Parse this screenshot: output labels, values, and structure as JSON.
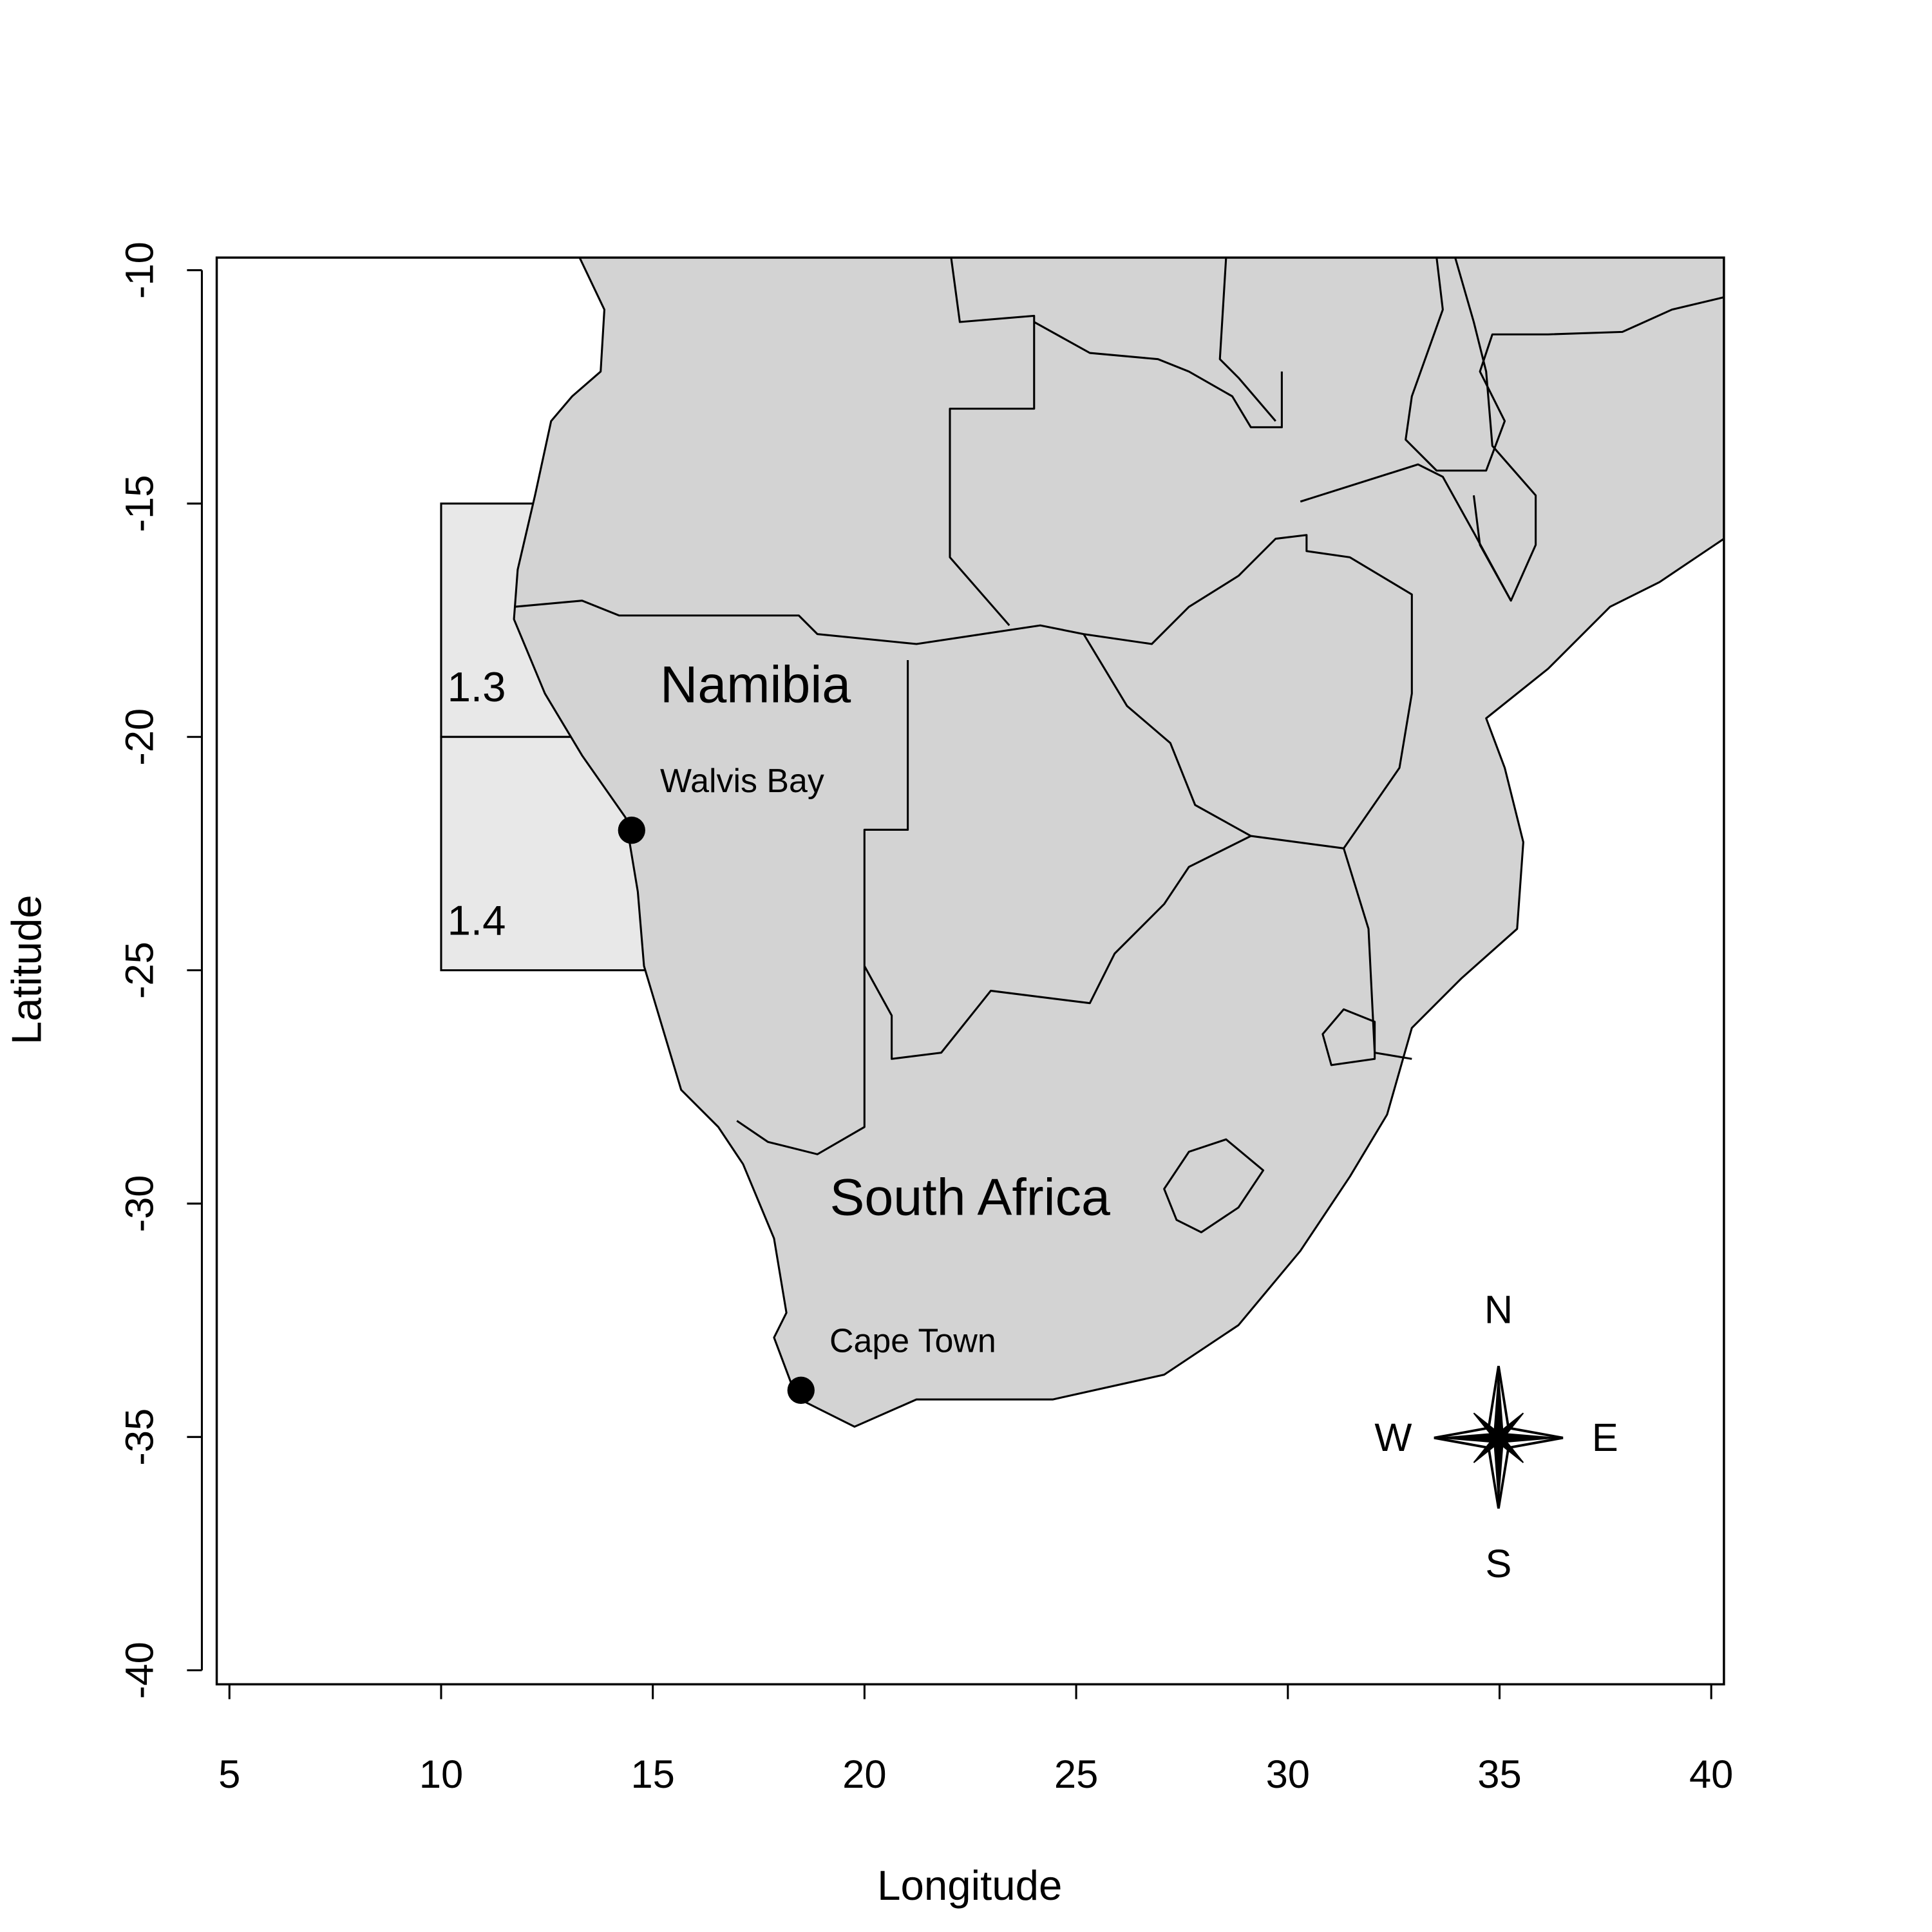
{
  "chart_data": {
    "type": "map",
    "xlabel": "Longitude",
    "ylabel": "Latitude",
    "xlim": [
      4.7,
      40.3
    ],
    "ylim": [
      -40.3,
      -9.73
    ],
    "xticks": [
      5,
      10,
      15,
      20,
      25,
      30,
      35,
      40
    ],
    "yticks": [
      -10,
      -15,
      -20,
      -25,
      -30,
      -35,
      -40
    ],
    "regions": [
      {
        "name": "1.3",
        "xlim": [
          10,
          15
        ],
        "ylim": [
          -20,
          -15
        ],
        "color": "#e8e8e8"
      },
      {
        "name": "1.4",
        "xlim": [
          10,
          15
        ],
        "ylim": [
          -25,
          -20
        ],
        "color": "#e8e8e8"
      }
    ],
    "points": [
      {
        "name": "Walvis Bay",
        "x": 14.5,
        "y": -22
      },
      {
        "name": "Cape Town",
        "x": 18.5,
        "y": -34
      }
    ],
    "country_labels": [
      "Namibia",
      "South Africa"
    ],
    "compass": {
      "north": "N",
      "south": "S",
      "east": "E",
      "west": "W"
    }
  }
}
